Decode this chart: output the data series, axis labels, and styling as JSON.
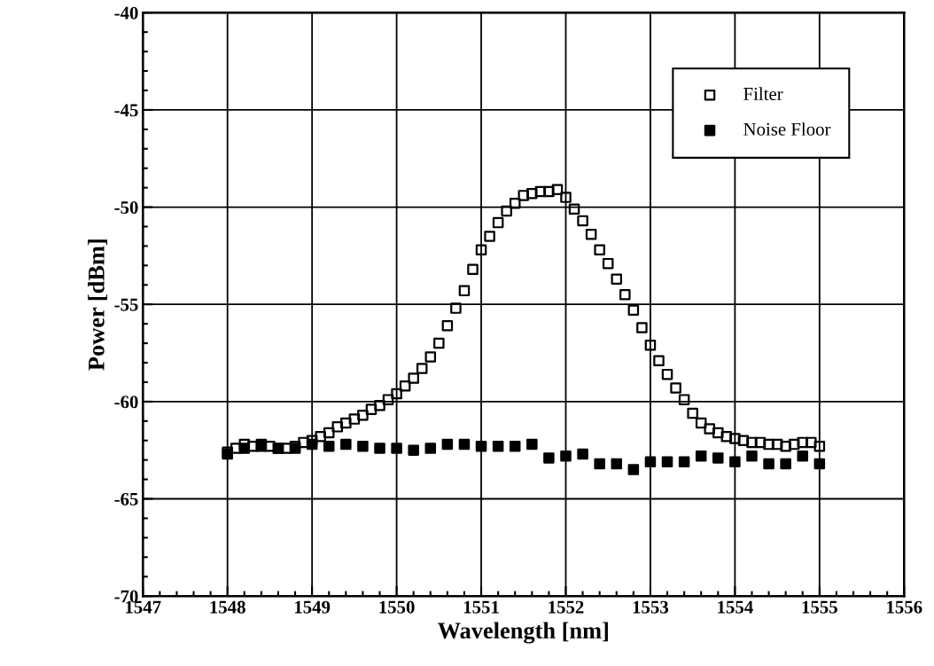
{
  "chart_data": {
    "type": "scatter",
    "xlabel": "Wavelength [nm]",
    "ylabel": "Power [dBm]",
    "xlim": [
      1547,
      1556
    ],
    "xticks": [
      1547,
      1548,
      1549,
      1550,
      1551,
      1552,
      1553,
      1554,
      1555,
      1556
    ],
    "ylim": [
      -70,
      -40
    ],
    "yticks": [
      -70,
      -65,
      -60,
      -55,
      -50,
      -45,
      -40
    ],
    "grid": true,
    "legend": "top right",
    "marker": "square",
    "series": [
      {
        "name": "Filter",
        "color": "#000000",
        "x": [
          1548.0,
          1548.1,
          1548.2,
          1548.3,
          1548.4,
          1548.5,
          1548.6,
          1548.7,
          1548.8,
          1548.9,
          1549.0,
          1549.1,
          1549.2,
          1549.3,
          1549.4,
          1549.5,
          1549.6,
          1549.7,
          1549.8,
          1549.9,
          1550.0,
          1550.1,
          1550.2,
          1550.3,
          1550.4,
          1550.5,
          1550.6,
          1550.7,
          1550.8,
          1550.9,
          1551.0,
          1551.1,
          1551.2,
          1551.3,
          1551.4,
          1551.5,
          1551.6,
          1551.7,
          1551.8,
          1551.9,
          1552.0,
          1552.1,
          1552.2,
          1552.3,
          1552.4,
          1552.5,
          1552.6,
          1552.7,
          1552.8,
          1552.9,
          1553.0,
          1553.1,
          1553.2,
          1553.3,
          1553.4,
          1553.5,
          1553.6,
          1553.7,
          1553.8,
          1553.9,
          1554.0,
          1554.1,
          1554.2,
          1554.3,
          1554.4,
          1554.5,
          1554.6,
          1554.7,
          1554.8,
          1554.9,
          1555.0
        ],
        "values": [
          -62.6,
          -62.4,
          -62.2,
          -62.3,
          -62.2,
          -62.3,
          -62.4,
          -62.4,
          -62.3,
          -62.1,
          -62.0,
          -61.8,
          -61.6,
          -61.3,
          -61.1,
          -60.9,
          -60.7,
          -60.4,
          -60.2,
          -59.9,
          -59.6,
          -59.2,
          -58.8,
          -58.3,
          -57.7,
          -57.0,
          -56.1,
          -55.2,
          -54.3,
          -53.2,
          -52.2,
          -51.5,
          -50.8,
          -50.2,
          -49.8,
          -49.4,
          -49.3,
          -49.2,
          -49.2,
          -49.1,
          -49.5,
          -50.1,
          -50.7,
          -51.4,
          -52.2,
          -52.9,
          -53.7,
          -54.5,
          -55.3,
          -56.2,
          -57.1,
          -57.9,
          -58.6,
          -59.3,
          -59.9,
          -60.6,
          -61.1,
          -61.4,
          -61.6,
          -61.8,
          -61.9,
          -62.0,
          -62.1,
          -62.1,
          -62.2,
          -62.2,
          -62.3,
          -62.2,
          -62.1,
          -62.1,
          -62.3
        ]
      },
      {
        "name": "Noise Floor",
        "color": "#000000",
        "x": [
          1548.0,
          1548.2,
          1548.4,
          1548.6,
          1548.8,
          1549.0,
          1549.2,
          1549.4,
          1549.6,
          1549.8,
          1550.0,
          1550.2,
          1550.4,
          1550.6,
          1550.8,
          1551.0,
          1551.2,
          1551.4,
          1551.6,
          1551.8,
          1552.0,
          1552.2,
          1552.4,
          1552.6,
          1552.8,
          1553.0,
          1553.2,
          1553.4,
          1553.6,
          1553.8,
          1554.0,
          1554.2,
          1554.4,
          1554.6,
          1554.8,
          1555.0
        ],
        "values": [
          -62.7,
          -62.4,
          -62.3,
          -62.4,
          -62.4,
          -62.2,
          -62.3,
          -62.2,
          -62.3,
          -62.4,
          -62.4,
          -62.5,
          -62.4,
          -62.2,
          -62.2,
          -62.3,
          -62.3,
          -62.3,
          -62.2,
          -62.9,
          -62.8,
          -62.7,
          -63.2,
          -63.2,
          -63.5,
          -63.1,
          -63.1,
          -63.1,
          -62.8,
          -62.9,
          -63.1,
          -62.8,
          -63.2,
          -63.2,
          -62.8,
          -63.2
        ]
      }
    ]
  }
}
